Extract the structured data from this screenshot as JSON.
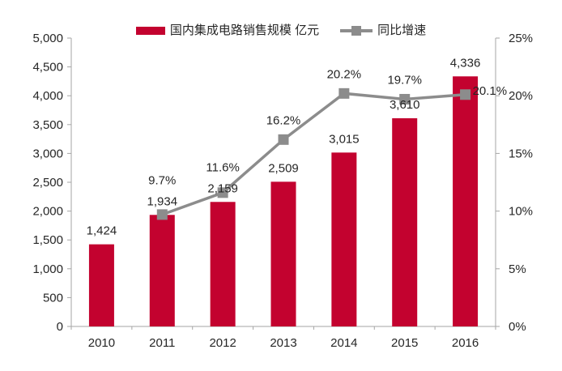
{
  "chart_data": {
    "type": "combo-bar-line",
    "title": "",
    "categories": [
      "2010",
      "2011",
      "2012",
      "2013",
      "2014",
      "2015",
      "2016"
    ],
    "series": [
      {
        "name": "国内集成电路销售规模 亿元",
        "type": "bar",
        "axis": "left",
        "color": "#C3022F",
        "values": [
          1424,
          1934,
          2159,
          2509,
          3015,
          3610,
          4336
        ],
        "labels": [
          "1,424",
          "1,934",
          "2,159",
          "2,509",
          "3,015",
          "3,610",
          "4,336"
        ]
      },
      {
        "name": "同比增速",
        "type": "line",
        "axis": "right",
        "color": "#8C8C8C",
        "marker": "square",
        "values": [
          null,
          9.7,
          11.6,
          16.2,
          20.2,
          19.7,
          20.1
        ],
        "labels": [
          null,
          "9.7%",
          "11.6%",
          "16.2%",
          "20.2%",
          "19.7%",
          "20.1%"
        ],
        "last_label_side": "right"
      }
    ],
    "left_axis": {
      "min": 0,
      "max": 5000,
      "step": 500,
      "tick_labels": [
        "0",
        "500",
        "1,000",
        "1,500",
        "2,000",
        "2,500",
        "3,000",
        "3,500",
        "4,000",
        "4,500",
        "5,000"
      ]
    },
    "right_axis": {
      "min": 0,
      "max": 25,
      "step": 5,
      "tick_labels": [
        "0%",
        "5%",
        "10%",
        "15%",
        "20%",
        "25%"
      ]
    },
    "legend_position": "top",
    "gridlines": false,
    "axis_color": "#A6A6A6",
    "text_color": "#262626",
    "background": "#FFFFFF"
  }
}
